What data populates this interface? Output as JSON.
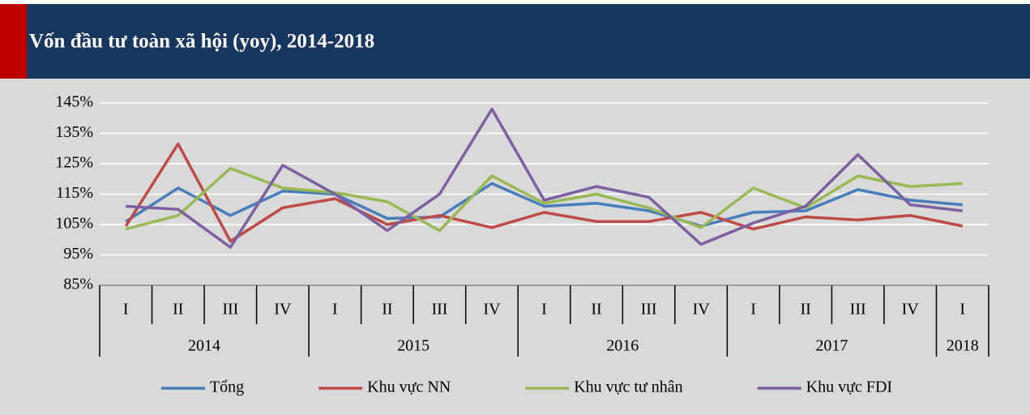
{
  "chart_data": {
    "type": "line",
    "title": "Vốn đầu tư toàn xã hội (yoy), 2014-2018",
    "categories": [
      "I",
      "II",
      "III",
      "IV",
      "I",
      "II",
      "III",
      "IV",
      "I",
      "II",
      "III",
      "IV",
      "I",
      "II",
      "III",
      "IV",
      "I"
    ],
    "year_groups": [
      {
        "label": "2014",
        "span": 4
      },
      {
        "label": "2015",
        "span": 4
      },
      {
        "label": "2016",
        "span": 4
      },
      {
        "label": "2017",
        "span": 4
      },
      {
        "label": "2018",
        "span": 1
      }
    ],
    "series": [
      {
        "name": "Tổng",
        "color": "#4a7ebb",
        "values": [
          106,
          117,
          108,
          116,
          115,
          107,
          107.5,
          118.5,
          111,
          112,
          109.5,
          104.5,
          109,
          109.5,
          116.5,
          113,
          111.5
        ]
      },
      {
        "name": "Khu vực NN",
        "color": "#be4b48",
        "values": [
          104.5,
          131.5,
          99.5,
          110.5,
          113.5,
          105,
          108,
          104,
          109,
          106,
          106,
          109,
          103.5,
          107.5,
          106.5,
          108,
          104.5
        ]
      },
      {
        "name": "Khu vực tư nhân",
        "color": "#98b954",
        "values": [
          103.5,
          108,
          123.5,
          117,
          115.5,
          112.5,
          103,
          121,
          112,
          115,
          110.5,
          104,
          117,
          110.5,
          121,
          117.5,
          118.5
        ]
      },
      {
        "name": "Khu vực FDI",
        "color": "#7d60a0",
        "values": [
          111,
          110,
          97.5,
          124.5,
          115,
          103,
          115,
          143,
          113,
          117.5,
          114,
          98.5,
          105.5,
          111,
          128,
          111.5,
          109.5
        ]
      }
    ],
    "ylim": [
      85,
      145
    ],
    "yticks": [
      {
        "value": 85,
        "label": "85%"
      },
      {
        "value": 95,
        "label": "95%"
      },
      {
        "value": 105,
        "label": "105%"
      },
      {
        "value": 115,
        "label": "115%"
      },
      {
        "value": 125,
        "label": "125%"
      },
      {
        "value": 135,
        "label": "135%"
      },
      {
        "value": 145,
        "label": "145%"
      }
    ],
    "grid": true
  }
}
